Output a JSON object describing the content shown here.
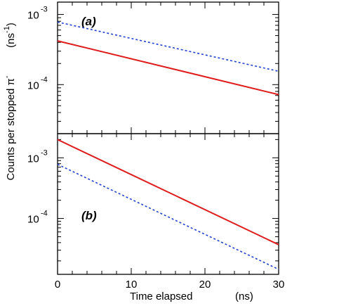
{
  "chart_data": [
    {
      "type": "line",
      "panel_label": "(a)",
      "y_scale": "log",
      "xlim": [
        0,
        30
      ],
      "ylim": [
        2e-05,
        0.0015
      ],
      "y_ticks": [
        {
          "value": 0.001,
          "mantissa": "10",
          "exponent": "-3"
        },
        {
          "value": 0.0001,
          "mantissa": "10",
          "exponent": "-4"
        }
      ],
      "series": [
        {
          "style": "solid",
          "color": "#e01b1b",
          "x": [
            0,
            30
          ],
          "y": [
            0.00042,
            7.2e-05
          ]
        },
        {
          "style": "dashed",
          "color": "#1f3fd6",
          "x": [
            0,
            30
          ],
          "y": [
            0.00078,
            0.000155
          ]
        }
      ]
    },
    {
      "type": "line",
      "panel_label": "(b)",
      "y_scale": "log",
      "xlim": [
        0,
        30
      ],
      "ylim": [
        1.2e-05,
        0.0025
      ],
      "y_ticks": [
        {
          "value": 0.001,
          "mantissa": "10",
          "exponent": "-3"
        },
        {
          "value": 0.0001,
          "mantissa": "10",
          "exponent": "-4"
        }
      ],
      "series": [
        {
          "style": "solid",
          "color": "#e01b1b",
          "x": [
            0,
            30
          ],
          "y": [
            0.002,
            3.7e-05
          ]
        },
        {
          "style": "dashed",
          "color": "#1f3fd6",
          "x": [
            0,
            30
          ],
          "y": [
            0.00078,
            1.45e-05
          ]
        }
      ]
    }
  ],
  "axes": {
    "x_ticks": [
      "0",
      "10",
      "20",
      "30"
    ],
    "x_tick_values": [
      0,
      10,
      20,
      30
    ],
    "xlabel": "Time elapsed",
    "xunit": "(ns)",
    "ylabel": "Counts  per  stopped  π",
    "ylabel_sup": "-",
    "yunit_main": "(ns",
    "yunit_sup": "-1",
    "yunit_close": ")"
  }
}
